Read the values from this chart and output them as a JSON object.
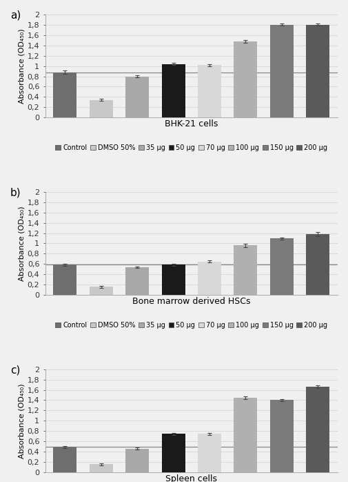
{
  "panels": [
    {
      "label": "a)",
      "xlabel": "BHK-21 cells",
      "values": [
        0.88,
        0.34,
        0.8,
        1.04,
        1.02,
        1.48,
        1.8,
        1.8
      ],
      "errors": [
        0.03,
        0.02,
        0.02,
        0.02,
        0.02,
        0.03,
        0.02,
        0.02
      ],
      "hline": 0.88,
      "ylim": [
        0,
        2.0
      ]
    },
    {
      "label": "b)",
      "xlabel": "Bone marrow derived HSCs",
      "values": [
        0.59,
        0.16,
        0.54,
        0.59,
        0.65,
        0.96,
        1.1,
        1.18
      ],
      "errors": [
        0.02,
        0.02,
        0.01,
        0.02,
        0.02,
        0.03,
        0.02,
        0.04
      ],
      "hline": 0.59,
      "ylim": [
        0,
        2.0
      ]
    },
    {
      "label": "c)",
      "xlabel": "Spleen cells",
      "values": [
        0.49,
        0.16,
        0.46,
        0.75,
        0.75,
        1.45,
        1.4,
        1.66
      ],
      "errors": [
        0.02,
        0.02,
        0.02,
        0.02,
        0.02,
        0.03,
        0.02,
        0.03
      ],
      "hline": 0.49,
      "ylim": [
        0,
        2.0
      ]
    }
  ],
  "bar_colors": [
    "#6e6e6e",
    "#c8c8c8",
    "#a8a8a8",
    "#1a1a1a",
    "#d8d8d8",
    "#b0b0b0",
    "#7a7a7a",
    "#5a5a5a"
  ],
  "legend_labels": [
    "Control",
    "DMSO 50%",
    "35 μg",
    "50 μg",
    "70 μg",
    "100 μg",
    "150 μg",
    "200 μg"
  ],
  "yticks": [
    0,
    0.2,
    0.4,
    0.6,
    0.8,
    1.0,
    1.2,
    1.4,
    1.6,
    1.8,
    2.0
  ],
  "ytick_labels": [
    "0",
    "0,2",
    "0,4",
    "0,6",
    "0,8",
    "1",
    "1,2",
    "1,4",
    "1,6",
    "1,8",
    "2"
  ],
  "ylabel": "Absorbance (OD₄₅₀)",
  "background_color": "#f0f0f0",
  "hline_color": "#888888",
  "bar_width": 0.65,
  "xlabel_fontsize": 9,
  "ylabel_fontsize": 8,
  "tick_fontsize": 8,
  "legend_fontsize": 7.0
}
